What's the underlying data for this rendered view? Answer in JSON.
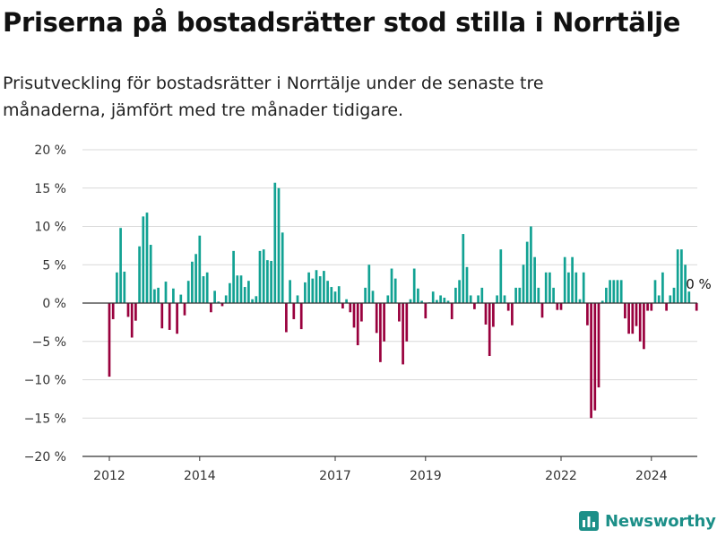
{
  "title": "Priserna på bostadsrätter stod stilla i Norrtälje",
  "subtitle": "Prisutveckling för bostadsrätter i Norrtälje under de senaste tre månaderna, jämfört med tre månader tidigare.",
  "brand": {
    "name": "Newsworthy",
    "icon": "newsworthy-logo-icon",
    "color": "#1c8f88"
  },
  "colors": {
    "positive": "#12a293",
    "negative": "#99003d",
    "grid": "#d9d9d9",
    "axis": "#333333"
  },
  "chart_data": {
    "type": "bar",
    "title": "",
    "xlabel": "",
    "ylabel": "",
    "ylim": [
      -20,
      20
    ],
    "yticks": [
      20,
      15,
      10,
      5,
      0,
      -5,
      -10,
      -15,
      -20
    ],
    "ytick_labels": [
      "20 %",
      "15 %",
      "10 %",
      "5 %",
      "0 %",
      "−5 %",
      "−10 %",
      "−15 %",
      "−20 %"
    ],
    "xticks": [
      2012,
      2014,
      2017,
      2019,
      2022,
      2024
    ],
    "x_start": 2012.0,
    "x_end": 2025.0,
    "period": "monthly",
    "end_label": "0 %",
    "values": [
      -9.6,
      -2.1,
      4.0,
      9.8,
      4.1,
      -1.8,
      -4.5,
      -2.3,
      7.4,
      11.3,
      11.8,
      7.6,
      1.8,
      2.0,
      -3.3,
      2.8,
      -3.5,
      1.9,
      -4.0,
      1.1,
      -1.6,
      2.9,
      5.4,
      6.4,
      8.8,
      3.5,
      4.0,
      -1.2,
      1.6,
      0.2,
      -0.4,
      1.0,
      2.6,
      6.8,
      3.6,
      3.6,
      2.1,
      2.9,
      0.5,
      0.9,
      6.8,
      7.0,
      5.6,
      5.5,
      15.7,
      15.0,
      9.2,
      -3.8,
      3.0,
      -2.1,
      1.0,
      -3.4,
      2.7,
      4.0,
      3.2,
      4.3,
      3.5,
      4.2,
      2.9,
      2.1,
      1.5,
      2.2,
      -0.7,
      0.5,
      -1.2,
      -3.2,
      -5.5,
      -2.4,
      2.0,
      5.0,
      1.6,
      -3.9,
      -7.7,
      -5.0,
      1.0,
      4.5,
      3.2,
      -2.4,
      -8.0,
      -5.0,
      0.5,
      4.5,
      1.9,
      0.3,
      -2.0,
      0.1,
      1.5,
      0.4,
      1.0,
      0.7,
      0.3,
      -2.1,
      2.0,
      3.0,
      9.0,
      4.7,
      1.0,
      -0.8,
      1.0,
      2.0,
      -2.8,
      -6.9,
      -3.1,
      1.0,
      7.0,
      1.0,
      -1.0,
      -2.9,
      2.0,
      2.0,
      5.0,
      8.0,
      10.0,
      6.0,
      2.0,
      -1.9,
      4.0,
      4.0,
      2.0,
      -0.9,
      -0.9,
      6.0,
      4.0,
      6.0,
      4.0,
      0.5,
      4.0,
      -2.9,
      -15.0,
      -14.0,
      -11.0,
      0.3,
      2.0,
      3.0,
      3.0,
      3.0,
      3.0,
      -2.0,
      -4.0,
      -4.0,
      -3.0,
      -5.0,
      -6.0,
      -1.0,
      -1.0,
      3.0,
      1.0,
      4.0,
      -1.0,
      1.0,
      2.0,
      7.0,
      7.0,
      5.0,
      1.5,
      0.0,
      -1.0
    ]
  }
}
